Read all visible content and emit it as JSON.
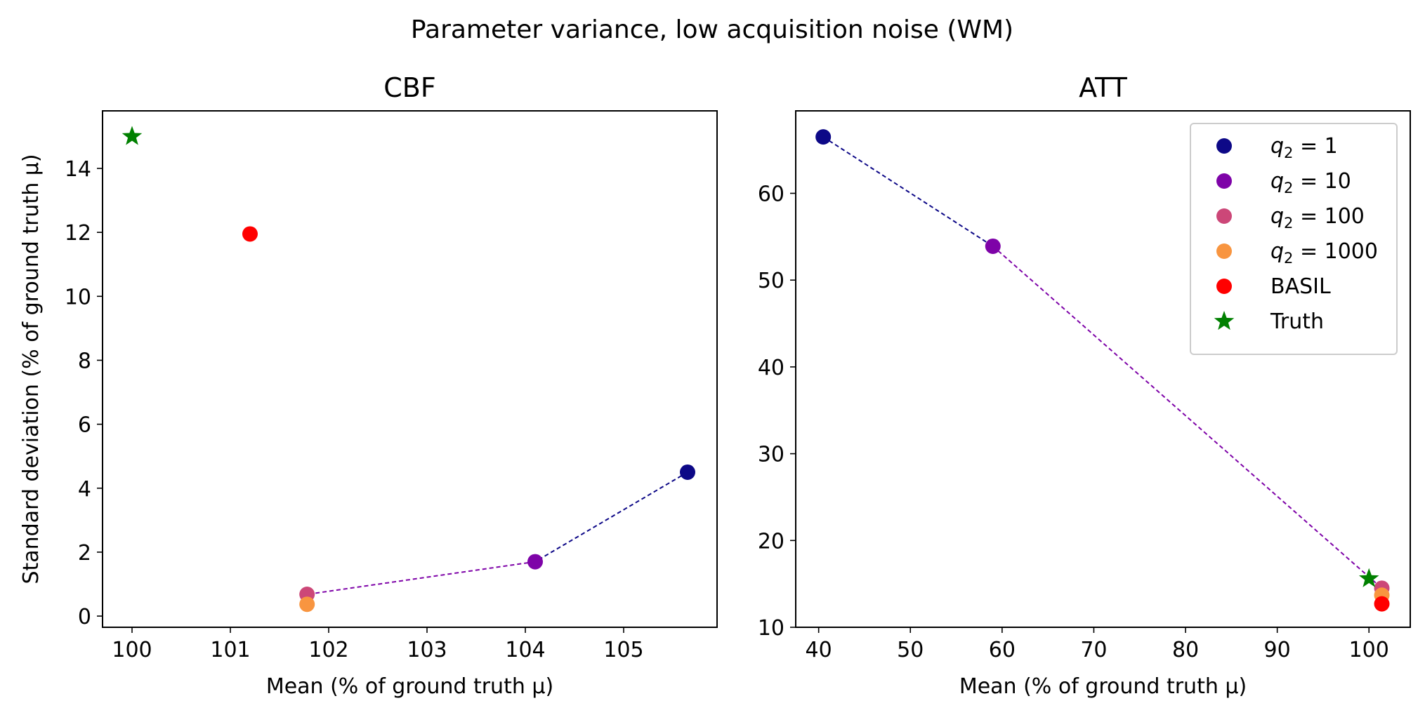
{
  "figure": {
    "suptitle": "Parameter variance, low acquisition noise (WM)"
  },
  "chart_data": [
    {
      "type": "scatter",
      "title": "CBF",
      "xlabel": "Mean (% of ground truth μ)",
      "ylabel": "Standard deviation (% of ground truth μ)",
      "xlim": [
        99.7,
        105.95
      ],
      "ylim": [
        -0.35,
        15.8
      ],
      "xticks": [
        100,
        101,
        102,
        103,
        104,
        105
      ],
      "yticks": [
        0,
        2,
        4,
        6,
        8,
        10,
        12,
        14
      ],
      "series": [
        {
          "name": "q₂ = 1",
          "color": "#0d0887",
          "marker": "circle",
          "x": 105.65,
          "y": 4.5
        },
        {
          "name": "q₂ = 10",
          "color": "#7e03a8",
          "marker": "circle",
          "x": 104.1,
          "y": 1.7
        },
        {
          "name": "q₂ = 100",
          "color": "#cc4778",
          "marker": "circle",
          "x": 101.78,
          "y": 0.68
        },
        {
          "name": "q₂ = 1000",
          "color": "#f89540",
          "marker": "circle",
          "x": 101.78,
          "y": 0.37
        },
        {
          "name": "BASIL",
          "color": "#ff0000",
          "marker": "circle",
          "x": 101.2,
          "y": 11.95
        },
        {
          "name": "Truth",
          "color": "#008000",
          "marker": "star",
          "x": 100.0,
          "y": 15.0
        }
      ],
      "connectors": [
        {
          "from": 0,
          "to": 1,
          "color": "#0d0887"
        },
        {
          "from": 1,
          "to": 2,
          "color": "#7e03a8"
        },
        {
          "from": 2,
          "to": 3,
          "color": "#cc4778"
        }
      ]
    },
    {
      "type": "scatter",
      "title": "ATT",
      "xlabel": "Mean (% of ground truth μ)",
      "ylabel": "",
      "xlim": [
        37.5,
        104.5
      ],
      "ylim": [
        10,
        69.5
      ],
      "xticks": [
        40,
        50,
        60,
        70,
        80,
        90,
        100
      ],
      "yticks": [
        10,
        20,
        30,
        40,
        50,
        60
      ],
      "series": [
        {
          "name": "q₂ = 1",
          "color": "#0d0887",
          "marker": "circle",
          "x": 40.5,
          "y": 66.5
        },
        {
          "name": "q₂ = 10",
          "color": "#7e03a8",
          "marker": "circle",
          "x": 59.0,
          "y": 53.9
        },
        {
          "name": "q₂ = 100",
          "color": "#cc4778",
          "marker": "circle",
          "x": 101.4,
          "y": 14.5
        },
        {
          "name": "q₂ = 1000",
          "color": "#f89540",
          "marker": "circle",
          "x": 101.4,
          "y": 13.7
        },
        {
          "name": "BASIL",
          "color": "#ff0000",
          "marker": "circle",
          "x": 101.4,
          "y": 12.7
        },
        {
          "name": "Truth",
          "color": "#008000",
          "marker": "star",
          "x": 100.0,
          "y": 15.6
        }
      ],
      "connectors": [
        {
          "from": 0,
          "to": 1,
          "color": "#0d0887"
        },
        {
          "from": 1,
          "to": 2,
          "color": "#7e03a8"
        },
        {
          "from": 2,
          "to": 3,
          "color": "#cc4778"
        }
      ],
      "legend": {
        "placement": "top-right",
        "entries": [
          {
            "label_base": "q",
            "label_sub": "2",
            "label_rest": " = 1",
            "color": "#0d0887",
            "marker": "circle"
          },
          {
            "label_base": "q",
            "label_sub": "2",
            "label_rest": " = 10",
            "color": "#7e03a8",
            "marker": "circle"
          },
          {
            "label_base": "q",
            "label_sub": "2",
            "label_rest": " = 100",
            "color": "#cc4778",
            "marker": "circle"
          },
          {
            "label_base": "q",
            "label_sub": "2",
            "label_rest": " = 1000",
            "color": "#f89540",
            "marker": "circle"
          },
          {
            "label_base": "BASIL",
            "label_sub": "",
            "label_rest": "",
            "color": "#ff0000",
            "marker": "circle"
          },
          {
            "label_base": "Truth",
            "label_sub": "",
            "label_rest": "",
            "color": "#008000",
            "marker": "star"
          }
        ]
      }
    }
  ]
}
